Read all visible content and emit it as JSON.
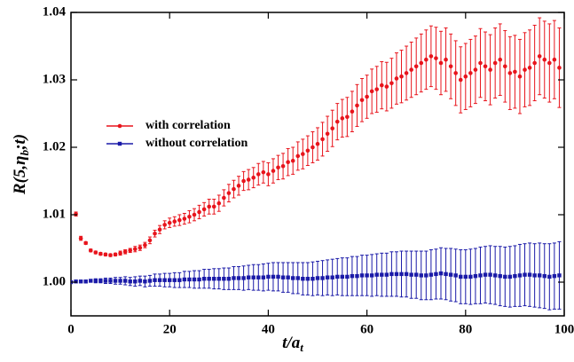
{
  "chart_data": {
    "type": "scatter",
    "xlabel": [
      "t/a",
      "t"
    ],
    "ylabel": [
      "R(5,η",
      "b",
      ";t)"
    ],
    "xlim": [
      0,
      100
    ],
    "ylim": [
      0.995,
      1.04
    ],
    "xticks": [
      0,
      20,
      40,
      60,
      80,
      100
    ],
    "yticks": [
      {
        "value": 1.0,
        "label": "1.00"
      },
      {
        "value": 1.01,
        "label": "1.01"
      },
      {
        "value": 1.02,
        "label": "1.02"
      },
      {
        "value": 1.03,
        "label": "1.03"
      },
      {
        "value": 1.04,
        "label": "1.04"
      }
    ],
    "legend": "upper left",
    "series": [
      {
        "name": "with correlation",
        "color": "#e8141c",
        "marker": "circle",
        "x": [
          1,
          2,
          3,
          4,
          5,
          6,
          7,
          8,
          9,
          10,
          11,
          12,
          13,
          14,
          15,
          16,
          17,
          18,
          19,
          20,
          21,
          22,
          23,
          24,
          25,
          26,
          27,
          28,
          29,
          30,
          31,
          32,
          33,
          34,
          35,
          36,
          37,
          38,
          39,
          40,
          41,
          42,
          43,
          44,
          45,
          46,
          47,
          48,
          49,
          50,
          51,
          52,
          53,
          54,
          55,
          56,
          57,
          58,
          59,
          60,
          61,
          62,
          63,
          64,
          65,
          66,
          67,
          68,
          69,
          70,
          71,
          72,
          73,
          74,
          75,
          76,
          77,
          78,
          79,
          80,
          81,
          82,
          83,
          84,
          85,
          86,
          87,
          88,
          89,
          90,
          91,
          92,
          93,
          94,
          95,
          96,
          97,
          98,
          99
        ],
        "values": [
          1.0101,
          1.0065,
          1.0058,
          1.0047,
          1.0044,
          1.0042,
          1.0041,
          1.004,
          1.0041,
          1.0043,
          1.0045,
          1.0047,
          1.0049,
          1.0051,
          1.0055,
          1.0062,
          1.0072,
          1.0078,
          1.0085,
          1.0088,
          1.009,
          1.0092,
          1.0094,
          1.0097,
          1.01,
          1.0104,
          1.0108,
          1.0112,
          1.0112,
          1.0117,
          1.0125,
          1.0132,
          1.0138,
          1.0143,
          1.015,
          1.0152,
          1.0155,
          1.016,
          1.0163,
          1.016,
          1.0165,
          1.017,
          1.0172,
          1.0178,
          1.018,
          1.0187,
          1.019,
          1.0195,
          1.02,
          1.0205,
          1.0212,
          1.022,
          1.0228,
          1.0238,
          1.0243,
          1.0245,
          1.0253,
          1.0262,
          1.027,
          1.0275,
          1.0283,
          1.0286,
          1.0292,
          1.029,
          1.0295,
          1.0302,
          1.0305,
          1.031,
          1.0315,
          1.032,
          1.0325,
          1.033,
          1.0335,
          1.0332,
          1.0325,
          1.033,
          1.032,
          1.031,
          1.03,
          1.0305,
          1.031,
          1.0315,
          1.0325,
          1.032,
          1.0315,
          1.0325,
          1.033,
          1.032,
          1.031,
          1.0312,
          1.0305,
          1.0315,
          1.0318,
          1.0325,
          1.0335,
          1.033,
          1.0325,
          1.033,
          1.0318
        ],
        "errors": [
          0.0003,
          0.0003,
          0.0002,
          0.0002,
          0.0002,
          0.0002,
          0.0002,
          0.0002,
          0.0002,
          0.0003,
          0.0003,
          0.0003,
          0.0004,
          0.0004,
          0.0004,
          0.0005,
          0.0005,
          0.0006,
          0.0006,
          0.0007,
          0.0007,
          0.0008,
          0.0008,
          0.0009,
          0.0009,
          0.001,
          0.001,
          0.0011,
          0.0011,
          0.0012,
          0.0012,
          0.0013,
          0.0013,
          0.0014,
          0.0014,
          0.0015,
          0.0015,
          0.0016,
          0.0016,
          0.0017,
          0.0018,
          0.0018,
          0.0019,
          0.002,
          0.002,
          0.0021,
          0.0022,
          0.0022,
          0.0023,
          0.0024,
          0.0025,
          0.0026,
          0.0027,
          0.0027,
          0.0028,
          0.0029,
          0.003,
          0.0031,
          0.0032,
          0.0032,
          0.0033,
          0.0034,
          0.0035,
          0.0036,
          0.0037,
          0.0038,
          0.0039,
          0.004,
          0.0041,
          0.0042,
          0.0043,
          0.0044,
          0.0045,
          0.0046,
          0.0047,
          0.0047,
          0.0048,
          0.0048,
          0.0049,
          0.0049,
          0.005,
          0.005,
          0.0051,
          0.0051,
          0.0052,
          0.0052,
          0.0053,
          0.0053,
          0.0054,
          0.0054,
          0.0055,
          0.0055,
          0.0056,
          0.0056,
          0.0057,
          0.0057,
          0.0058,
          0.0058,
          0.0059
        ]
      },
      {
        "name": "without correlation",
        "color": "#1a1aa8",
        "marker": "square",
        "x": [
          0,
          1,
          2,
          3,
          4,
          5,
          6,
          7,
          8,
          9,
          10,
          11,
          12,
          13,
          14,
          15,
          16,
          17,
          18,
          19,
          20,
          21,
          22,
          23,
          24,
          25,
          26,
          27,
          28,
          29,
          30,
          31,
          32,
          33,
          34,
          35,
          36,
          37,
          38,
          39,
          40,
          41,
          42,
          43,
          44,
          45,
          46,
          47,
          48,
          49,
          50,
          51,
          52,
          53,
          54,
          55,
          56,
          57,
          58,
          59,
          60,
          61,
          62,
          63,
          64,
          65,
          66,
          67,
          68,
          69,
          70,
          71,
          72,
          73,
          74,
          75,
          76,
          77,
          78,
          79,
          80,
          81,
          82,
          83,
          84,
          85,
          86,
          87,
          88,
          89,
          90,
          91,
          92,
          93,
          94,
          95,
          96,
          97,
          98,
          99
        ],
        "values": [
          1.0,
          1.0001,
          1.0001,
          1.0001,
          1.0002,
          1.0002,
          1.0002,
          1.0002,
          1.0002,
          1.0002,
          1.0002,
          1.0002,
          1.0001,
          1.0001,
          1.0002,
          1.0001,
          1.0002,
          1.0003,
          1.0003,
          1.0003,
          1.0003,
          1.0003,
          1.0003,
          1.0004,
          1.0004,
          1.0004,
          1.0004,
          1.0005,
          1.0005,
          1.0005,
          1.0005,
          1.0005,
          1.0005,
          1.0006,
          1.0006,
          1.0006,
          1.0007,
          1.0007,
          1.0007,
          1.0007,
          1.0008,
          1.0008,
          1.0008,
          1.0007,
          1.0007,
          1.0006,
          1.0006,
          1.0005,
          1.0005,
          1.0005,
          1.0006,
          1.0006,
          1.0007,
          1.0007,
          1.0008,
          1.0008,
          1.0008,
          1.0009,
          1.0009,
          1.001,
          1.001,
          1.001,
          1.0011,
          1.0011,
          1.0011,
          1.0012,
          1.0012,
          1.0012,
          1.0012,
          1.0011,
          1.0011,
          1.001,
          1.001,
          1.0011,
          1.0012,
          1.0013,
          1.0012,
          1.0011,
          1.001,
          1.0008,
          1.0008,
          1.0008,
          1.0009,
          1.001,
          1.0011,
          1.0011,
          1.001,
          1.0009,
          1.0008,
          1.0008,
          1.0009,
          1.001,
          1.0011,
          1.0011,
          1.001,
          1.001,
          1.0009,
          1.0008,
          1.0009,
          1.001
        ],
        "errors": [
          0,
          0.0001,
          0.0001,
          0.0002,
          0.0002,
          0.0003,
          0.0003,
          0.0004,
          0.0004,
          0.0005,
          0.0005,
          0.0006,
          0.0006,
          0.0007,
          0.0007,
          0.0008,
          0.0008,
          0.0009,
          0.0009,
          0.001,
          0.001,
          0.0011,
          0.0011,
          0.0012,
          0.0012,
          0.0013,
          0.0013,
          0.0014,
          0.0014,
          0.0015,
          0.0015,
          0.0016,
          0.0016,
          0.0017,
          0.0017,
          0.0018,
          0.0018,
          0.0019,
          0.0019,
          0.002,
          0.002,
          0.0021,
          0.0021,
          0.0022,
          0.0022,
          0.0023,
          0.0023,
          0.0024,
          0.0024,
          0.0025,
          0.0025,
          0.0026,
          0.0026,
          0.0027,
          0.0027,
          0.0028,
          0.0028,
          0.0029,
          0.0029,
          0.003,
          0.003,
          0.0031,
          0.0031,
          0.0032,
          0.0032,
          0.0033,
          0.0033,
          0.0034,
          0.0034,
          0.0035,
          0.0035,
          0.0036,
          0.0036,
          0.0037,
          0.0037,
          0.0038,
          0.0038,
          0.0039,
          0.0039,
          0.004,
          0.004,
          0.0041,
          0.0041,
          0.0042,
          0.0042,
          0.0043,
          0.0043,
          0.0044,
          0.0044,
          0.0045,
          0.0045,
          0.0046,
          0.0046,
          0.0047,
          0.0047,
          0.0048,
          0.0048,
          0.0049,
          0.0049,
          0.005
        ]
      }
    ]
  }
}
